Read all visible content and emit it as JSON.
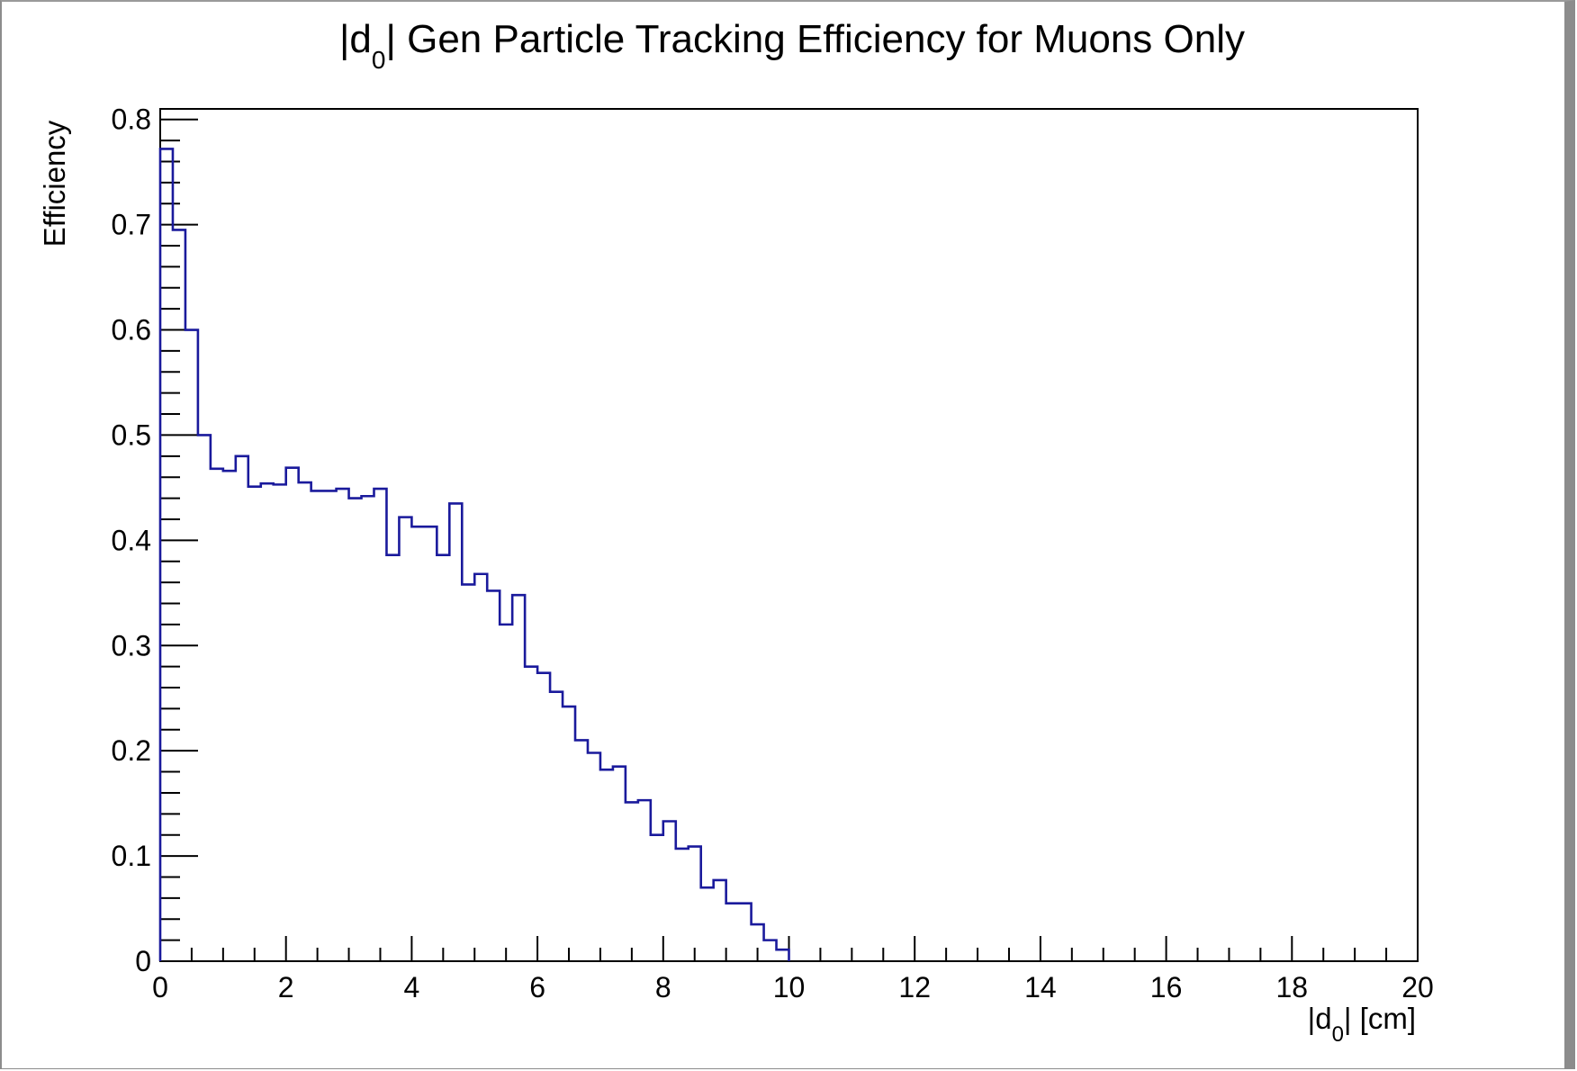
{
  "chart_data": {
    "type": "bar",
    "style": "step-histogram",
    "title": {
      "text": "|d",
      "subscript": "0",
      "rest": "| Gen Particle Tracking Efficiency for Muons Only"
    },
    "xlabel": {
      "text": "|d",
      "subscript": "0",
      "rest": "| [cm]"
    },
    "ylabel": "Efficiency",
    "xlim": [
      0,
      20
    ],
    "ylim": [
      0,
      0.81
    ],
    "bin_width": 0.2,
    "bin_start": 0,
    "values": [
      0.772,
      0.695,
      0.6,
      0.5,
      0.468,
      0.466,
      0.48,
      0.451,
      0.454,
      0.453,
      0.469,
      0.455,
      0.447,
      0.447,
      0.449,
      0.44,
      0.442,
      0.449,
      0.386,
      0.422,
      0.413,
      0.413,
      0.386,
      0.435,
      0.358,
      0.368,
      0.352,
      0.32,
      0.348,
      0.28,
      0.274,
      0.256,
      0.242,
      0.21,
      0.198,
      0.182,
      0.185,
      0.151,
      0.153,
      0.12,
      0.133,
      0.107,
      0.109,
      0.07,
      0.077,
      0.055,
      0.055,
      0.035,
      0.02,
      0.011,
      0,
      0,
      0,
      0,
      0,
      0,
      0,
      0,
      0,
      0,
      0,
      0,
      0,
      0,
      0,
      0,
      0,
      0,
      0,
      0,
      0,
      0,
      0,
      0,
      0,
      0,
      0,
      0,
      0,
      0,
      0,
      0,
      0,
      0,
      0,
      0,
      0,
      0,
      0,
      0,
      0,
      0,
      0,
      0,
      0,
      0,
      0,
      0,
      0,
      0
    ],
    "x_ticks": [
      "0",
      "2",
      "4",
      "6",
      "8",
      "10",
      "12",
      "14",
      "16",
      "18",
      "20"
    ],
    "x_tick_values": [
      0,
      2,
      4,
      6,
      8,
      10,
      12,
      14,
      16,
      18,
      20
    ],
    "y_ticks": [
      "0",
      "0.1",
      "0.2",
      "0.3",
      "0.4",
      "0.5",
      "0.6",
      "0.7",
      "0.8"
    ],
    "y_tick_values": [
      0,
      0.1,
      0.2,
      0.3,
      0.4,
      0.5,
      0.6,
      0.7,
      0.8
    ],
    "line_color": "#1a1a9c",
    "axis_color": "#000000",
    "grid": false,
    "legend": "none"
  }
}
